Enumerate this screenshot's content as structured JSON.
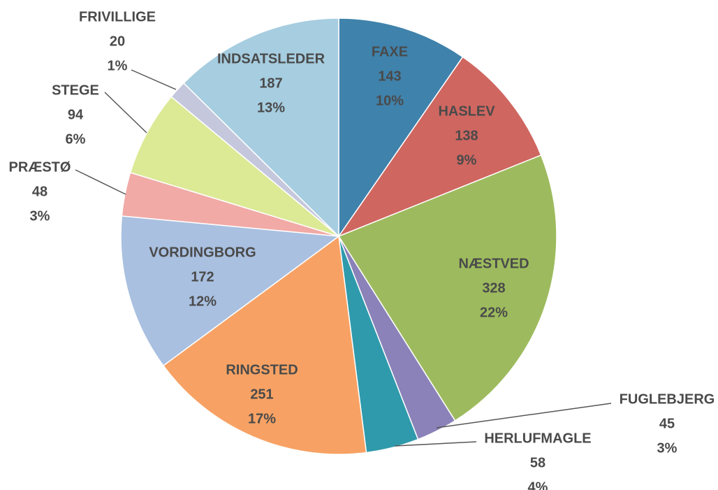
{
  "chart_data": {
    "type": "pie",
    "categories": [
      "FAXE",
      "HASLEV",
      "NÆSTVED",
      "FUGLEBJERG",
      "HERLUFMAGLE",
      "RINGSTED",
      "VORDINGBORG",
      "PRÆSTØ",
      "STEGE",
      "FRIVILLIGE",
      "INDSATSLEDER"
    ],
    "values": [
      143,
      138,
      328,
      45,
      58,
      251,
      172,
      48,
      94,
      20,
      187
    ],
    "percent_labels": [
      "10%",
      "9%",
      "22%",
      "3%",
      "4%",
      "17%",
      "12%",
      "3%",
      "6%",
      "1%",
      "13%"
    ],
    "colors": [
      "#3f82ab",
      "#cf6660",
      "#9dbb5e",
      "#8a82b8",
      "#2f9aab",
      "#f7a264",
      "#a9c0e0",
      "#f1aaa6",
      "#dce995",
      "#c5c8dc",
      "#a6cde0"
    ]
  }
}
